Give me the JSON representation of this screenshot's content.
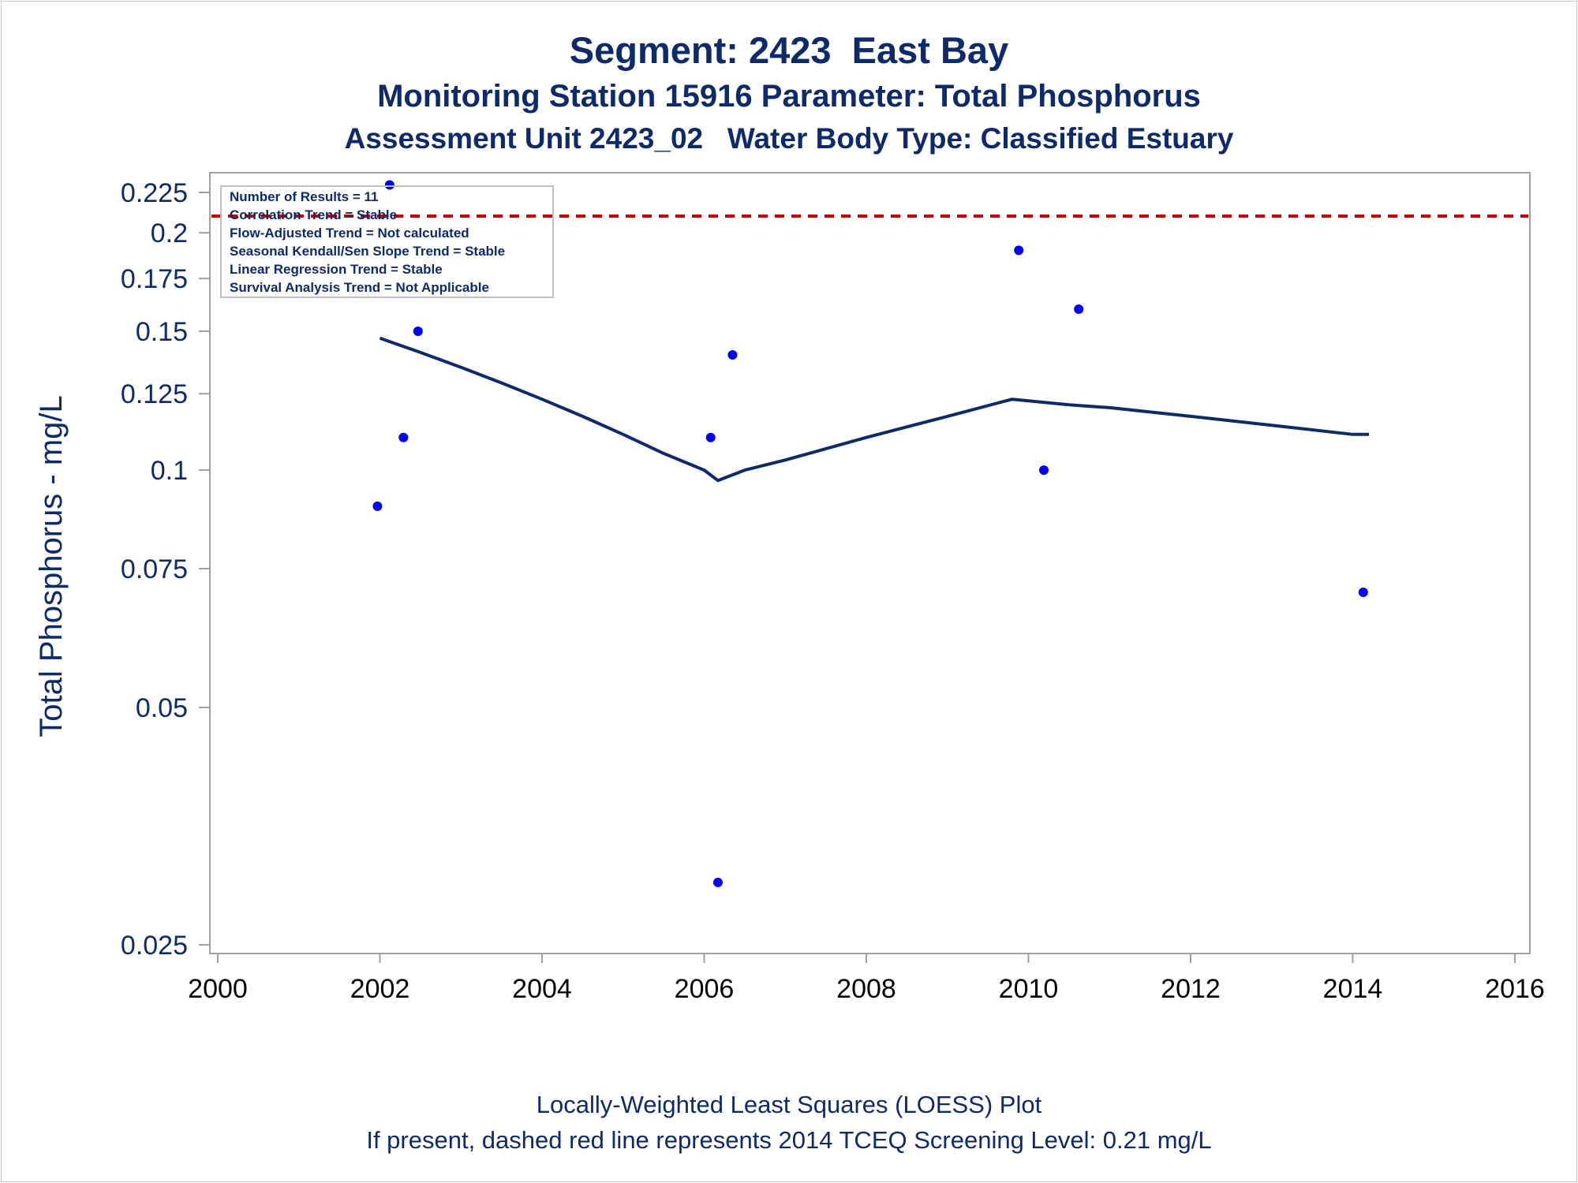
{
  "chart_data": {
    "type": "scatter",
    "title": "Segment: 2423  East Bay",
    "subtitle_lines": [
      "Monitoring Station 15916 Parameter: Total Phosphorus",
      "Assessment Unit 2423_02   Water Body Type: Classified Estuary"
    ],
    "ylabel": "Total Phosphorus - mg/L",
    "yscale": "log",
    "ylim": [
      0.025,
      0.24
    ],
    "xlim": [
      2000,
      2016.2
    ],
    "x_ticks": [
      "2000",
      "2002",
      "2004",
      "2006",
      "2008",
      "2010",
      "2012",
      "2014",
      "2016"
    ],
    "y_ticks": [
      "0.025",
      "0.05",
      "0.075",
      "0.1",
      "0.125",
      "0.15",
      "0.175",
      "0.2",
      "0.225"
    ],
    "series": [
      {
        "type": "scatter",
        "x": [
          2001.97,
          2002.12,
          2002.29,
          2002.47,
          2006.08,
          2006.17,
          2006.35,
          2009.88,
          2010.19,
          2010.62,
          2014.13
        ],
        "y": [
          0.09,
          0.23,
          0.11,
          0.15,
          0.11,
          0.03,
          0.14,
          0.19,
          0.1,
          0.16,
          0.07
        ],
        "color": "#0000ff"
      },
      {
        "type": "line",
        "x": [
          2002.0,
          2002.5,
          2003.0,
          2003.5,
          2004.0,
          2004.5,
          2005.0,
          2005.5,
          2006.0,
          2006.17,
          2006.5,
          2007.0,
          2008.0,
          2009.0,
          2009.8,
          2010.5,
          2011.0,
          2012.0,
          2013.0,
          2014.0,
          2014.2
        ],
        "y": [
          0.147,
          0.141,
          0.135,
          0.129,
          0.123,
          0.117,
          0.111,
          0.105,
          0.1,
          0.097,
          0.1,
          0.103,
          0.11,
          0.117,
          0.123,
          0.121,
          0.12,
          0.117,
          0.114,
          0.111,
          0.111
        ],
        "color": "#0d2a6b"
      }
    ],
    "reference_line": {
      "y": 0.21,
      "style": "dashed",
      "color": "#cc0000"
    },
    "legend": {
      "placement": "top-left",
      "lines": [
        "Number of Results = 11",
        "Correlation Trend = Stable",
        "Flow-Adjusted Trend = Not calculated",
        "Seasonal Kendall/Sen Slope Trend = Stable",
        "Linear Regression Trend = Stable",
        "Survival Analysis Trend = Not Applicable"
      ]
    },
    "footnotes": [
      "Locally-Weighted Least Squares (LOESS) Plot",
      "If present, dashed red line represents 2014 TCEQ Screening Level: 0.21 mg/L"
    ],
    "grid": false
  }
}
